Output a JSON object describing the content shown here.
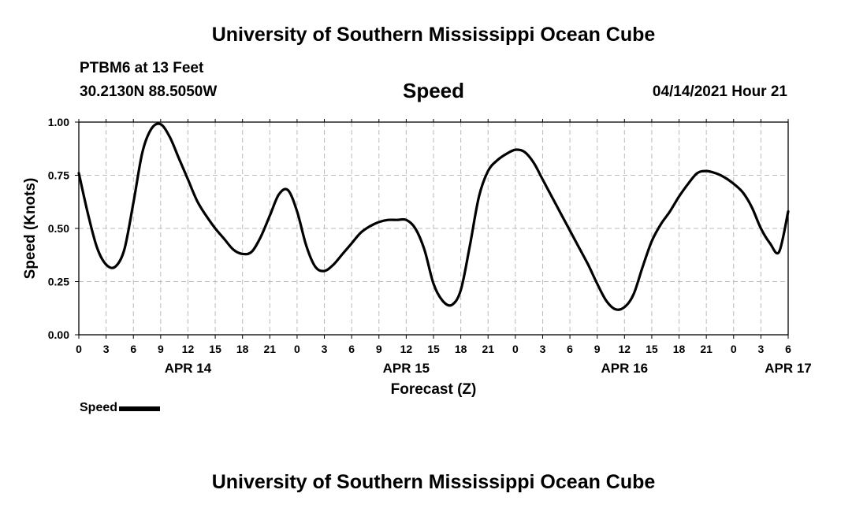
{
  "header": {
    "title": "University of Southern Mississippi Ocean Cube",
    "station": "PTBM6 at 13 Feet",
    "coords": "30.2130N  88.5050W",
    "datetime": "04/14/2021 Hour 21"
  },
  "footer": {
    "title": "University of Southern Mississippi Ocean Cube"
  },
  "legend": {
    "label": "Speed"
  },
  "chart_data": {
    "type": "line",
    "title": "Speed",
    "xlabel": "Forecast (Z)",
    "ylabel": "Speed (Knots)",
    "ylim": [
      0,
      1
    ],
    "yticks": [
      "0.00",
      "0.25",
      "0.50",
      "0.75",
      "1.00"
    ],
    "xlim_hours": [
      0,
      78
    ],
    "xticks": [
      "0",
      "3",
      "6",
      "9",
      "12",
      "15",
      "18",
      "21",
      "0",
      "3",
      "6",
      "9",
      "12",
      "15",
      "18",
      "21",
      "0",
      "3",
      "6",
      "9",
      "12",
      "15",
      "18",
      "21",
      "0",
      "3",
      "6"
    ],
    "date_labels": [
      {
        "label": "APR 14",
        "hour": 12
      },
      {
        "label": "APR 15",
        "hour": 36
      },
      {
        "label": "APR 16",
        "hour": 60
      },
      {
        "label": "APR 17",
        "hour": 78
      }
    ],
    "grid": true,
    "line_color": "#000000",
    "series": [
      {
        "name": "Speed",
        "x": [
          0,
          1,
          2,
          3,
          4,
          5,
          6,
          7,
          8,
          9,
          10,
          11,
          12,
          13,
          14,
          15,
          16,
          17,
          18,
          19,
          20,
          21,
          22,
          23,
          24,
          25,
          26,
          27,
          28,
          29,
          30,
          31,
          32,
          33,
          34,
          35,
          36,
          37,
          38,
          39,
          40,
          41,
          42,
          43,
          44,
          45,
          46,
          47,
          48,
          49,
          50,
          51,
          52,
          53,
          54,
          55,
          56,
          57,
          58,
          59,
          60,
          61,
          62,
          63,
          64,
          65,
          66,
          67,
          68,
          69,
          70,
          71,
          72,
          73,
          74,
          75,
          76,
          77,
          78
        ],
        "values": [
          0.76,
          0.57,
          0.41,
          0.33,
          0.32,
          0.4,
          0.62,
          0.86,
          0.97,
          0.99,
          0.93,
          0.83,
          0.73,
          0.63,
          0.56,
          0.5,
          0.45,
          0.4,
          0.38,
          0.39,
          0.46,
          0.56,
          0.66,
          0.68,
          0.58,
          0.42,
          0.32,
          0.3,
          0.33,
          0.38,
          0.43,
          0.48,
          0.51,
          0.53,
          0.54,
          0.54,
          0.54,
          0.5,
          0.4,
          0.24,
          0.16,
          0.14,
          0.21,
          0.42,
          0.65,
          0.77,
          0.82,
          0.85,
          0.87,
          0.86,
          0.81,
          0.73,
          0.65,
          0.57,
          0.49,
          0.41,
          0.33,
          0.24,
          0.16,
          0.12,
          0.13,
          0.19,
          0.32,
          0.44,
          0.52,
          0.58,
          0.65,
          0.71,
          0.76,
          0.77,
          0.76,
          0.74,
          0.71,
          0.67,
          0.6,
          0.5,
          0.43,
          0.39,
          0.58
        ]
      }
    ]
  }
}
